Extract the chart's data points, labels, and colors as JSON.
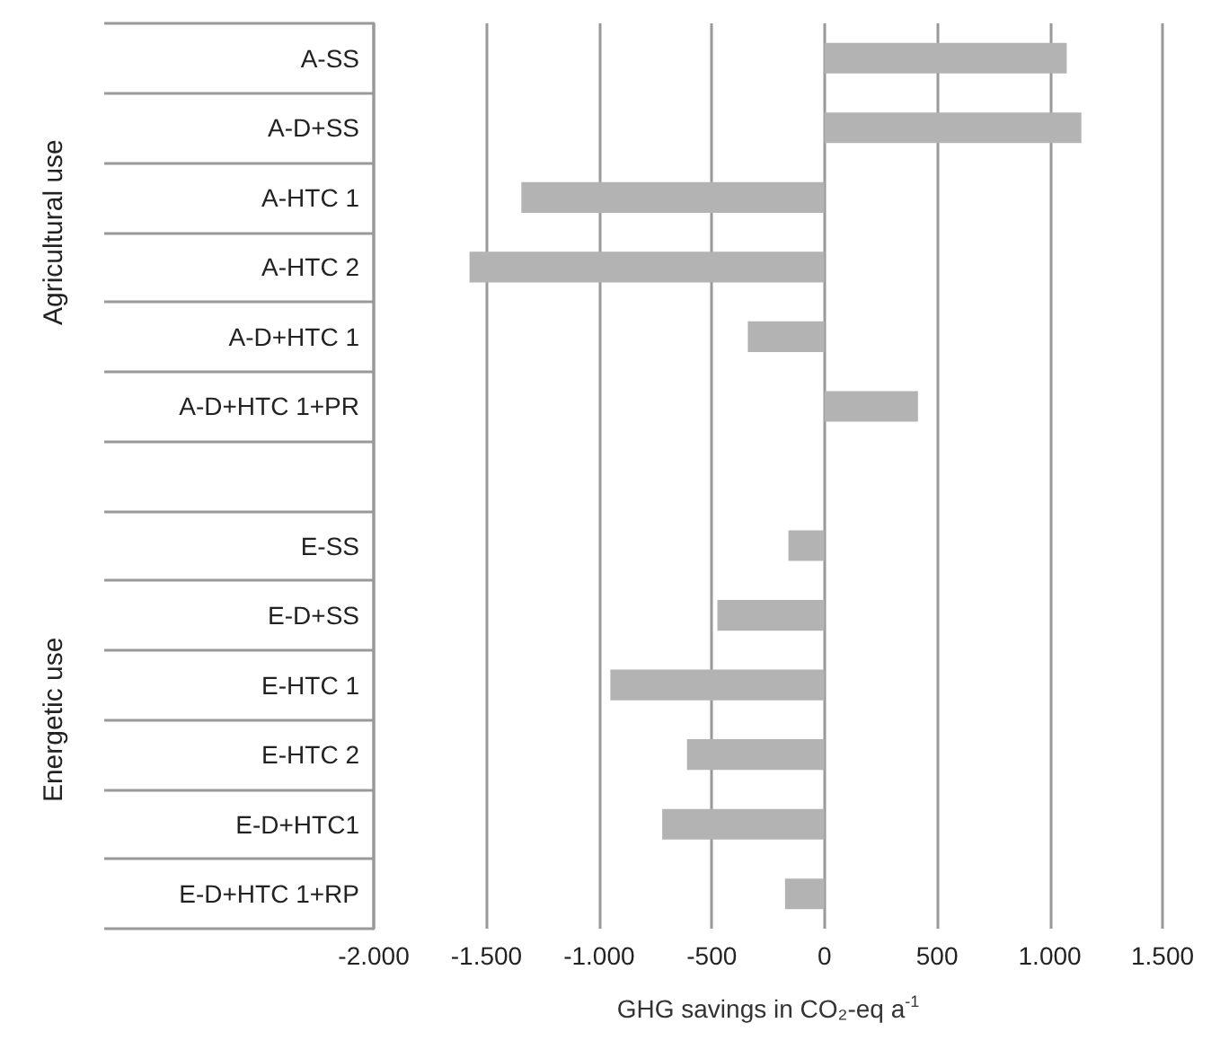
{
  "chart_data": {
    "type": "bar",
    "orientation": "horizontal",
    "categories": [
      "A-SS",
      "A-D+SS",
      "A-HTC 1",
      "A-HTC 2",
      "A-D+HTC 1",
      "A-D+HTC 1+PR",
      null,
      "E-SS",
      "E-D+SS",
      "E-HTC 1",
      "E-HTC 2",
      "E-D+HTC1",
      "E-D+HTC 1+RP"
    ],
    "values": [
      1075,
      1140,
      -1345,
      -1575,
      -340,
      415,
      null,
      -160,
      -475,
      -950,
      -610,
      -720,
      -175
    ],
    "color": "#b3b3b3",
    "xlabel": "GHG savings in CO₂-eq a$^{-1}$",
    "xlim": [
      -2000,
      1500
    ],
    "xticks": [
      {
        "value": -2000,
        "label": "-2.000"
      },
      {
        "value": -1500,
        "label": "-1.500"
      },
      {
        "value": -1000,
        "label": "-1.000"
      },
      -500,
      0,
      500,
      {
        "value": 1000,
        "label": "1.000"
      },
      {
        "value": 1500,
        "label": "1.500"
      }
    ],
    "annotations": [
      "Agricultural use",
      "Energetic use"
    ],
    "grid": "x"
  }
}
